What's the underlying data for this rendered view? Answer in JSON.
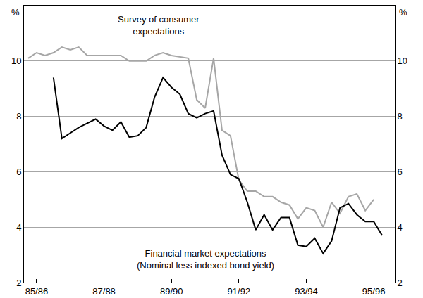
{
  "chart_data": {
    "type": "line",
    "ylabel": "%",
    "y2label": "%",
    "categories": [
      null,
      "85/86",
      null,
      null,
      null,
      null,
      null,
      null,
      null,
      "87/88",
      null,
      null,
      null,
      null,
      null,
      null,
      null,
      "89/90",
      null,
      null,
      null,
      null,
      null,
      null,
      null,
      "91/92",
      null,
      null,
      null,
      null,
      null,
      null,
      null,
      "93/94",
      null,
      null,
      null,
      null,
      null,
      null,
      null,
      "95/96",
      null,
      null
    ],
    "series": [
      {
        "name": "Survey of consumer\nexpectations",
        "color": "#a6a6a6",
        "values": [
          10.1,
          10.3,
          10.2,
          10.3,
          10.5,
          10.4,
          10.5,
          10.2,
          10.2,
          10.2,
          10.2,
          10.2,
          10.0,
          10.0,
          10.0,
          10.2,
          10.3,
          10.2,
          10.15,
          10.1,
          8.6,
          8.3,
          10.1,
          7.5,
          7.3,
          5.7,
          5.3,
          5.3,
          5.1,
          5.1,
          4.9,
          4.8,
          4.3,
          4.7,
          4.6,
          4.0,
          4.9,
          4.5,
          5.1,
          5.2,
          4.6,
          5.0,
          null,
          null
        ]
      },
      {
        "name": "Financial market expectations\n(Nominal less indexed bond yield)",
        "color": "#000000",
        "values": [
          null,
          null,
          null,
          9.4,
          7.2,
          7.4,
          7.6,
          7.75,
          7.9,
          7.65,
          7.5,
          7.8,
          7.25,
          7.3,
          7.6,
          8.7,
          9.4,
          9.05,
          8.8,
          8.1,
          7.95,
          8.1,
          8.2,
          6.6,
          5.9,
          5.75,
          4.9,
          3.9,
          4.45,
          3.9,
          4.35,
          4.35,
          3.35,
          3.3,
          3.6,
          3.05,
          3.5,
          4.7,
          4.85,
          4.45,
          4.2,
          4.2,
          3.7,
          null
        ]
      }
    ],
    "ylim": [
      2,
      12
    ],
    "yticks": [
      2,
      4,
      6,
      8,
      10
    ],
    "y2lim": [
      2,
      12
    ],
    "y2ticks": [
      2,
      4,
      6,
      8,
      10
    ],
    "grid": true
  }
}
